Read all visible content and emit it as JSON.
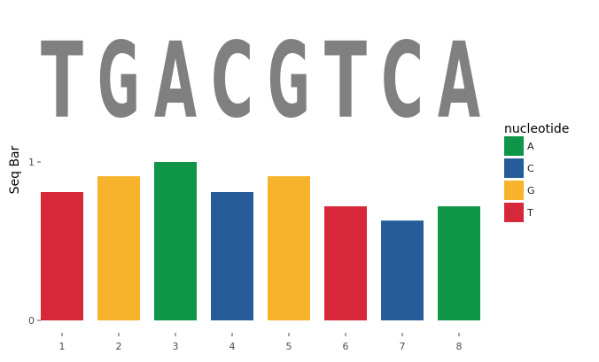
{
  "chart_data": {
    "type": "bar",
    "title": "",
    "xlabel": "",
    "ylabel": "Seq Bar",
    "ylim": [
      0,
      1
    ],
    "y_ticks": [
      "0",
      "1"
    ],
    "categories": [
      "1",
      "2",
      "3",
      "4",
      "5",
      "6",
      "7",
      "8"
    ],
    "sequence": [
      "T",
      "G",
      "A",
      "C",
      "G",
      "T",
      "C",
      "A"
    ],
    "values": [
      0.81,
      0.91,
      1.0,
      0.81,
      0.91,
      0.72,
      0.63,
      0.72
    ],
    "legend": {
      "title": "nucleotide",
      "position": "right",
      "entries": [
        {
          "label": "A",
          "color": "#0f9547"
        },
        {
          "label": "C",
          "color": "#255c99"
        },
        {
          "label": "G",
          "color": "#f7b32b"
        },
        {
          "label": "T",
          "color": "#d62839"
        }
      ]
    },
    "letter_color": "#808080",
    "grid": false
  }
}
